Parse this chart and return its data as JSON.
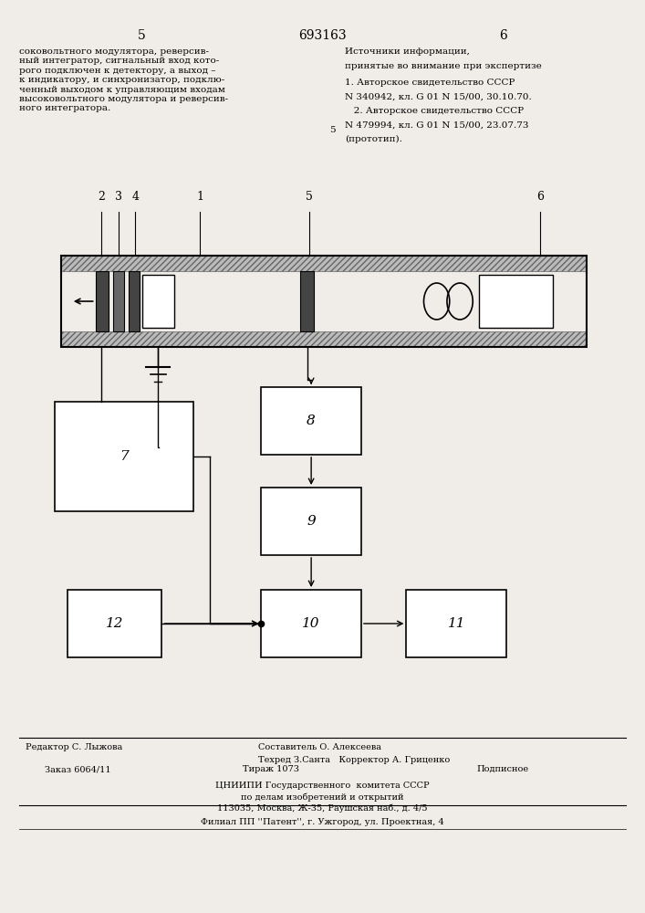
{
  "page_number_left": "5",
  "page_number_right": "6",
  "patent_number": "693163",
  "left_text": "соковольтного модулятора, реверсив-\nный интегратор, сигнальный вход кото-\nрого подключен к детектору, а выход –\nк индикатору, и синхронизатор, подклю-\nченный выходом к управляющим входам\nвысоковольтного модулятора и реверсив-\nного интегратора.",
  "right_header": "Источники информации,\nпринятые во внимание при экспертизе",
  "right_text1": "1. Авторское свидетельство СССР",
  "right_text2": "N 340942, кл. G 01 N 15/00, 30.10.70.",
  "right_text3": "   2. Авторское свидетельство СССР",
  "right_text4": "N 479994, кл. G 01 N 15/00, 23.07.73",
  "right_text5": "(прототип).",
  "margin_number": "5",
  "footer_editor": "Редактор С. Лыжова",
  "footer_composer": "Составитель О. Алексеева",
  "footer_tech": "Техред З.Санта",
  "footer_corrector": "Корректор А. Гриценко",
  "footer_order": "Заказ 6064/11",
  "footer_print": "Тираж 1073",
  "footer_sign": "Подписное",
  "footer_org1": "ЦНИИПИ Государственного  комитета СССР",
  "footer_org2": "по делам изобретений и открытий",
  "footer_org3": "113035, Москва, Ж-35, Раушская наб., д. 4/5",
  "footer_branch": "Филиал ПП ''Патент'', г. Ужгород, ул. Проектная, 4",
  "bg_color": "#f0ede8"
}
